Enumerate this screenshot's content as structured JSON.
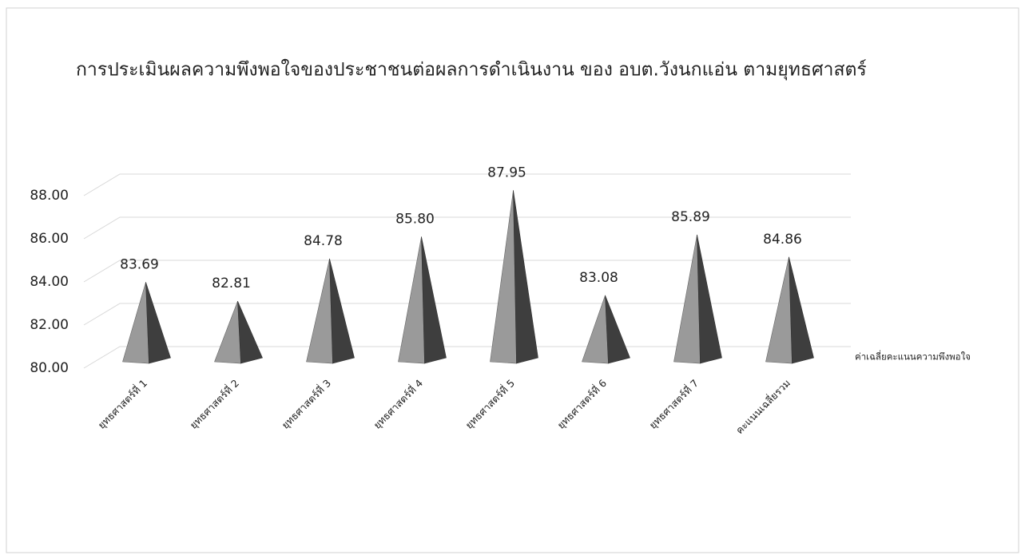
{
  "chart_data": {
    "type": "pyramid",
    "title": "การประเมินผลความพึงพอใจของประชาชนต่อผลการดำเนินงาน ของ อบต.วังนกแอ่น ตามยุทธศาสตร์",
    "categories": [
      "ยุทธศาสตร์ที่ 1",
      "ยุทธศาสตร์ที่ 2",
      "ยุทธศาสตร์ที่ 3",
      "ยุทธศาสตร์ที่ 4",
      "ยุทธศาสตร์ที่ 5",
      "ยุทธศาสตร์ที่ 6",
      "ยุทธศาสตร์ที่ 7",
      "คะแนนเฉลี่ยรวม"
    ],
    "series": [
      {
        "name": "ค่าเฉลี่ยคะแนนความพึงพอใจ",
        "color": "#9a9a9a",
        "values": [
          83.69,
          82.81,
          84.78,
          85.8,
          87.95,
          83.08,
          85.89,
          84.86
        ],
        "value_labels": [
          "83.69",
          "82.81",
          "84.78",
          "85.80",
          "87.95",
          "83.08",
          "85.89",
          "84.86"
        ]
      }
    ],
    "ylim": [
      80,
      88
    ],
    "yticks": [
      {
        "value": 80,
        "label": "80.00"
      },
      {
        "value": 82,
        "label": "82.00"
      },
      {
        "value": 84,
        "label": "84.00"
      },
      {
        "value": 86,
        "label": "86.00"
      },
      {
        "value": 88,
        "label": "88.00"
      }
    ],
    "grid": true
  }
}
